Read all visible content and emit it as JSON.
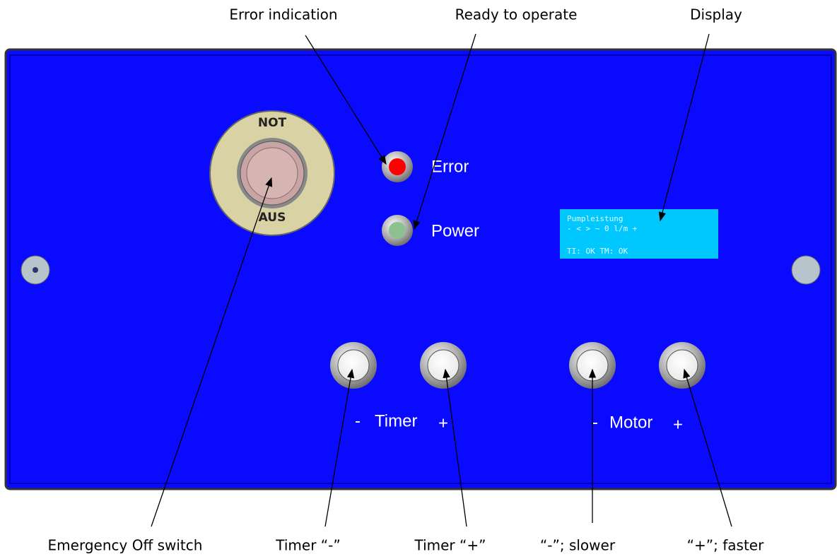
{
  "callouts_top": [
    "Error indication",
    "Ready to operate",
    "Display"
  ],
  "callouts_bottom": [
    "Emergency Off switch",
    "Timer “-”",
    "Timer “+”",
    "“-”; slower",
    "“+”; faster"
  ],
  "switch": {
    "top": "NOT",
    "bottom": "AUS"
  },
  "leds": [
    "Error",
    "Power"
  ],
  "display": [
    "Pumpleistung",
    "- <  >  ~  0 l/m +",
    "TI: OK   TM: OK"
  ],
  "groups": [
    {
      "minus": "-",
      "name": "Timer",
      "plus": "+"
    },
    {
      "minus": "-",
      "name": "Motor",
      "plus": "+"
    }
  ]
}
